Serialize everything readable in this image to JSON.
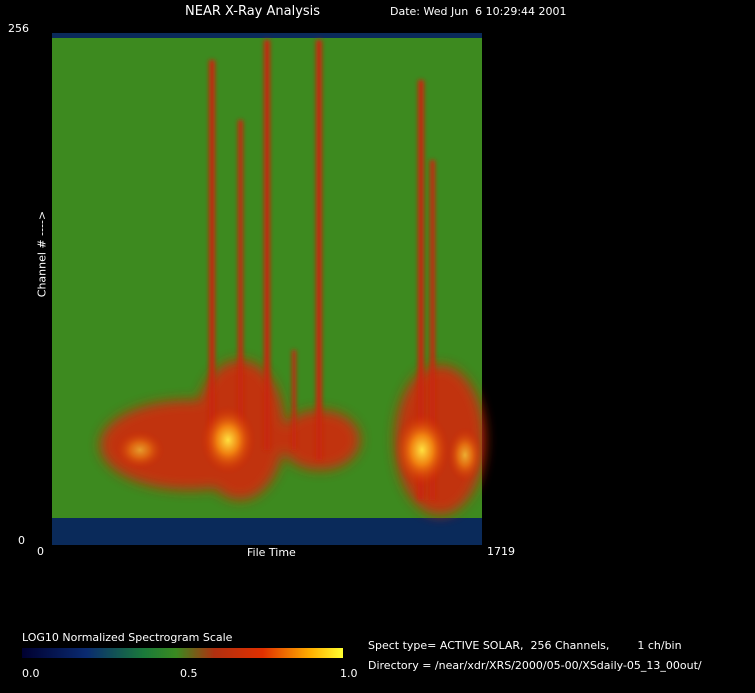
{
  "header": {
    "title": "NEAR X-Ray Analysis",
    "date": "Date: Wed Jun  6 10:29:44 2001"
  },
  "plot": {
    "y_top_label": "256",
    "y_bottom_label": "0",
    "x_left_label": "0",
    "x_right_label": "1719",
    "x_axis_title": "File Time",
    "y_axis_title": "Channel # ---->"
  },
  "colorbar": {
    "title": "LOG10 Normalized Spectrogram Scale",
    "labels": [
      "0.0",
      "0.5",
      "1.0"
    ]
  },
  "info": {
    "spect_type": "Spect type= ACTIVE SOLAR,  256 Channels,        1 ch/bin",
    "directory": "Directory = /near/xdr/XRS/2000/05-00/XSdaily-05_13_00out/"
  }
}
